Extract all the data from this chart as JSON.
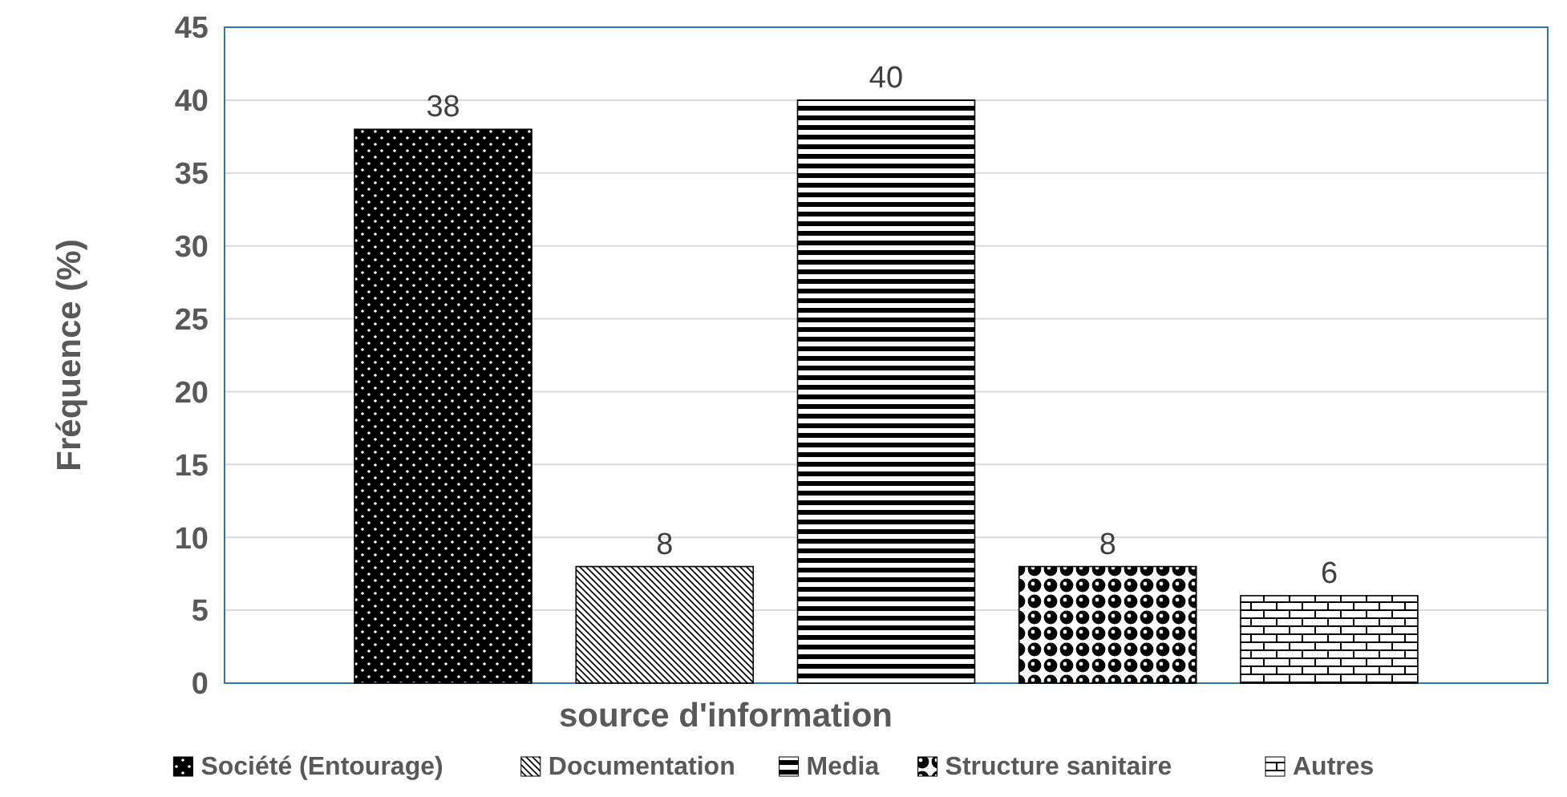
{
  "chart_data": {
    "type": "bar",
    "xlabel": "source d'information",
    "ylabel": "Fréquence (%)",
    "categories": [
      null
    ],
    "series": [
      {
        "name": "Société (Entourage)",
        "color": "#000000",
        "values": [
          38
        ]
      },
      {
        "name": "Documentation",
        "color": "#000000",
        "values": [
          8
        ]
      },
      {
        "name": "Media",
        "color": "#000000",
        "values": [
          40
        ]
      },
      {
        "name": "Structure sanitaire",
        "color": "#000000",
        "values": [
          8
        ]
      },
      {
        "name": "Autres",
        "color": "#000000",
        "values": [
          6
        ]
      }
    ],
    "ylim": [
      0,
      45
    ],
    "yticks": [
      0,
      5,
      10,
      15,
      20,
      25,
      30,
      35,
      40,
      45
    ],
    "grid": "y",
    "legend": "bottom",
    "data_labels": true
  }
}
